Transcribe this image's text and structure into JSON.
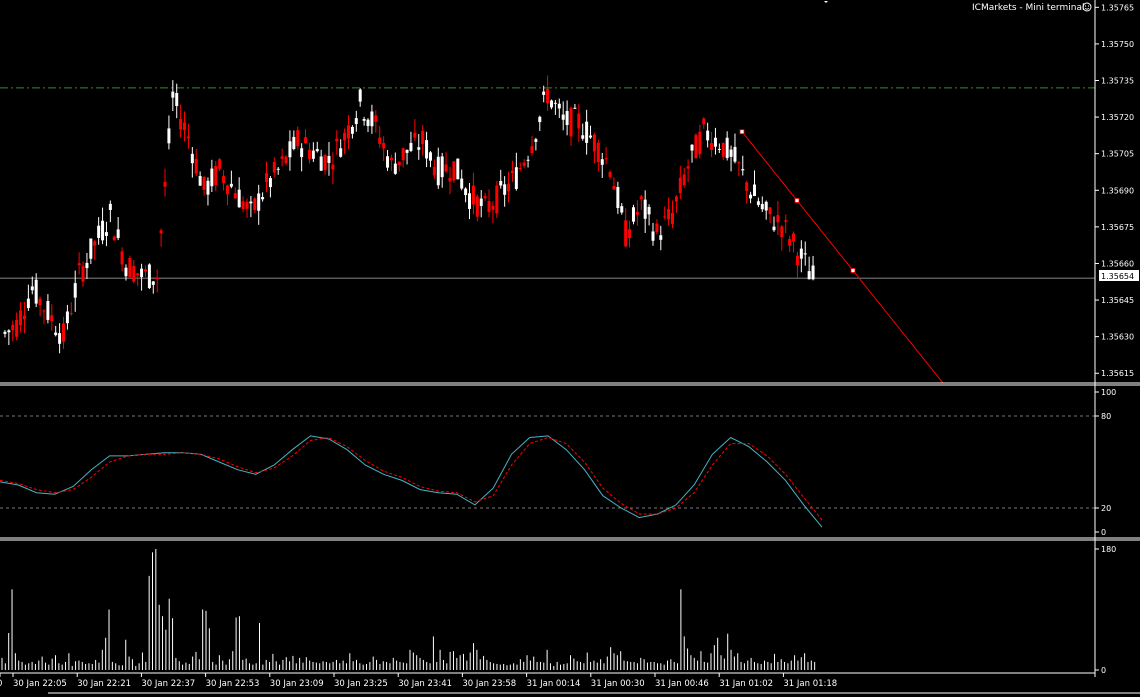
{
  "window": {
    "title": "ICMarkets - Mini terminal",
    "smiley_icon": "smiley-icon"
  },
  "colors": {
    "background": "#000000",
    "bull_candle": "#ffffff",
    "bear_candle": "#ff0000",
    "stoch_main": "#49b3c6",
    "stoch_signal": "#ff0000",
    "trendline": "#ff0000",
    "hline_green": "#2e8b2e",
    "level_line": "#b0b0b0",
    "dotted_level": "#a0a0a0",
    "axis": "#ffffff"
  },
  "chart_data": [
    {
      "type": "candlestick",
      "name": "price",
      "y_ticks": [
        "1.35765",
        "1.35750",
        "1.35735",
        "1.35720",
        "1.35705",
        "1.35690",
        "1.35675",
        "1.35660",
        "1.35645",
        "1.35630",
        "1.35615"
      ],
      "ylim": [
        1.35611,
        1.35768
      ],
      "current_price": "1.35654",
      "horizontal_line": 1.35732,
      "trendline": {
        "from": [
          "31 Jan 01:04",
          1.35714
        ],
        "to": [
          "31 Jan 01:36",
          1.35611
        ]
      },
      "trendline_points": [
        1.35714,
        1.35688,
        1.35657
      ],
      "closes_approx": [
        1.35635,
        1.3565,
        1.3564,
        1.3563,
        1.35655,
        1.35668,
        1.3568,
        1.3566,
        1.35655,
        1.35655,
        1.35728,
        1.35712,
        1.3569,
        1.35698,
        1.3569,
        1.3568,
        1.35692,
        1.357,
        1.3571,
        1.35706,
        1.35702,
        1.35712,
        1.35726,
        1.35716,
        1.357,
        1.35706,
        1.3571,
        1.35698,
        1.357,
        1.35688,
        1.35682,
        1.35688,
        1.35696,
        1.3571,
        1.3573,
        1.35718,
        1.35718,
        1.3571,
        1.357,
        1.35672,
        1.35684,
        1.35672,
        1.3568,
        1.357,
        1.35714,
        1.3571,
        1.35702,
        1.3569,
        1.3568,
        1.35676,
        1.35665,
        1.35654
      ]
    },
    {
      "type": "line",
      "name": "stochastic",
      "y_ticks": [
        "100",
        "80",
        "20",
        "0"
      ],
      "ylim": [
        0,
        100
      ],
      "levels": [
        80,
        20
      ],
      "series": [
        {
          "values": [
            37,
            35,
            30,
            29,
            34,
            45,
            54,
            54,
            55,
            56,
            56,
            55,
            50,
            45,
            42,
            48,
            58,
            67,
            65,
            58,
            48,
            42,
            38,
            32,
            30,
            29,
            22,
            33,
            55,
            66,
            67,
            58,
            45,
            28,
            20,
            12,
            15,
            22,
            35,
            55,
            66,
            60,
            50,
            38,
            22,
            4
          ]
        },
        {
          "values": [
            38,
            36,
            32,
            30,
            32,
            40,
            50,
            54,
            55,
            55,
            56,
            55,
            52,
            47,
            43,
            46,
            54,
            64,
            66,
            60,
            51,
            44,
            40,
            34,
            31,
            30,
            24,
            28,
            48,
            62,
            66,
            62,
            50,
            33,
            23,
            15,
            15,
            20,
            30,
            48,
            62,
            62,
            54,
            42,
            27,
            10
          ]
        }
      ]
    },
    {
      "type": "bar",
      "name": "volume",
      "y_ticks": [
        "180",
        "0"
      ],
      "ylim": [
        0,
        180
      ],
      "values": [
        18,
        10,
        55,
        120,
        25,
        14,
        12,
        8,
        10,
        12,
        9,
        14,
        20,
        11,
        8,
        17,
        22,
        10,
        8,
        12,
        25,
        6,
        13,
        14,
        12,
        9,
        10,
        9,
        15,
        11,
        30,
        48,
        90,
        12,
        10,
        7,
        7,
        45,
        20,
        16,
        6,
        10,
        26,
        12,
        140,
        175,
        180,
        97,
        80,
        60,
        106,
        77,
        18,
        13,
        8,
        11,
        9,
        20,
        27,
        16,
        90,
        88,
        62,
        12,
        8,
        22,
        14,
        8,
        16,
        28,
        78,
        80,
        15,
        17,
        10,
        8,
        10,
        70,
        8,
        15,
        12,
        24,
        13,
        8,
        15,
        19,
        13,
        21,
        10,
        18,
        11,
        19,
        14,
        12,
        11,
        10,
        13,
        12,
        10,
        12,
        15,
        10,
        14,
        10,
        25,
        13,
        15,
        10,
        8,
        9,
        12,
        20,
        15,
        9,
        13,
        12,
        10,
        18,
        14,
        12,
        11,
        10,
        30,
        26,
        22,
        18,
        15,
        12,
        10,
        50,
        12,
        30,
        15,
        10,
        27,
        28,
        18,
        22,
        24,
        14,
        26,
        40,
        30,
        16,
        21,
        15,
        12,
        10,
        9,
        8,
        9,
        7,
        8,
        10,
        8,
        16,
        12,
        22,
        14,
        20,
        12,
        12,
        11,
        30,
        10,
        6,
        12,
        8,
        9,
        10,
        22,
        17,
        13,
        12,
        10,
        26,
        12,
        14,
        11,
        16,
        10,
        20,
        34,
        25,
        22,
        28,
        14,
        13,
        12,
        12,
        10,
        18,
        16,
        11,
        12,
        12,
        10,
        10,
        8,
        14,
        16,
        12,
        10,
        120,
        50,
        32,
        22,
        18,
        14,
        28,
        12,
        11,
        25,
        37,
        48,
        22,
        17,
        54,
        30,
        20,
        25,
        12,
        10,
        14,
        18,
        12,
        10,
        9,
        14,
        12,
        10,
        24,
        12,
        16,
        12,
        10,
        14,
        22,
        14,
        19,
        25,
        12,
        14,
        12
      ]
    }
  ],
  "time_axis": {
    "labels": [
      "0",
      "30 Jan 22:05",
      "30 Jan 22:21",
      "30 Jan 22:37",
      "30 Jan 22:53",
      "30 Jan 23:09",
      "30 Jan 23:25",
      "30 Jan 23:41",
      "30 Jan 23:58",
      "31 Jan 00:14",
      "31 Jan 00:30",
      "31 Jan 00:46",
      "31 Jan 01:02",
      "31 Jan 01:18"
    ]
  }
}
